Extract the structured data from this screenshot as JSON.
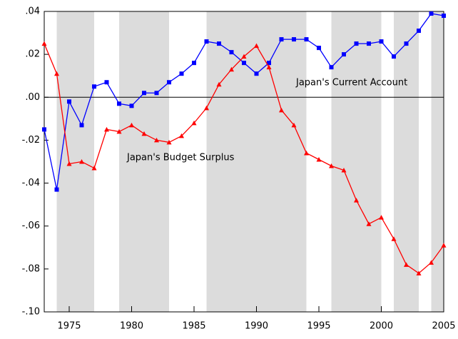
{
  "chart_data": {
    "type": "line",
    "x": [
      1973,
      1974,
      1975,
      1976,
      1977,
      1978,
      1979,
      1980,
      1981,
      1982,
      1983,
      1984,
      1985,
      1986,
      1987,
      1988,
      1989,
      1990,
      1991,
      1992,
      1993,
      1994,
      1995,
      1996,
      1997,
      1998,
      1999,
      2000,
      2001,
      2002,
      2003,
      2004,
      2005
    ],
    "series": [
      {
        "name": "Japan's Current Account",
        "color": "#0000ff",
        "marker": "square",
        "values": [
          -0.015,
          -0.043,
          -0.002,
          -0.013,
          0.005,
          0.007,
          -0.003,
          -0.004,
          0.002,
          0.002,
          0.007,
          0.011,
          0.016,
          0.026,
          0.025,
          0.021,
          0.016,
          0.011,
          0.016,
          0.027,
          0.027,
          0.027,
          0.023,
          0.014,
          0.02,
          0.025,
          0.025,
          0.026,
          0.019,
          0.025,
          0.031,
          0.039,
          0.038
        ]
      },
      {
        "name": "Japan's Budget Surplus",
        "color": "#ff0000",
        "marker": "triangle",
        "values": [
          0.025,
          0.011,
          -0.031,
          -0.03,
          -0.033,
          -0.015,
          -0.016,
          -0.013,
          -0.017,
          -0.02,
          -0.021,
          -0.018,
          -0.012,
          -0.005,
          0.006,
          0.013,
          0.019,
          0.024,
          0.014,
          -0.006,
          -0.013,
          -0.026,
          -0.029,
          -0.032,
          -0.034,
          -0.048,
          -0.059,
          -0.056,
          -0.066,
          -0.078,
          -0.082,
          -0.077,
          -0.069
        ]
      }
    ],
    "xlim": [
      1973,
      2005
    ],
    "xticks": [
      1975,
      1980,
      1985,
      1990,
      1995,
      2000,
      2005
    ],
    "ylim": [
      -0.1,
      0.04
    ],
    "yticks": [
      {
        "value": 0.04,
        "label": ".04"
      },
      {
        "value": 0.02,
        "label": ".02"
      },
      {
        "value": 0,
        "label": ".00"
      },
      {
        "value": -0.02,
        "label": "-.02"
      },
      {
        "value": -0.04,
        "label": "-.04"
      },
      {
        "value": -0.06,
        "label": "-.06"
      },
      {
        "value": -0.08,
        "label": "-.08"
      },
      {
        "value": -0.1,
        "label": "-.10"
      }
    ],
    "reference_line": 0,
    "shaded_periods": [
      [
        1974,
        1977
      ],
      [
        1979,
        1983
      ],
      [
        1986,
        1994
      ],
      [
        1996,
        2000
      ],
      [
        2001,
        2003
      ],
      [
        2004,
        2005
      ]
    ],
    "shade_color": "#dcdcdc"
  }
}
